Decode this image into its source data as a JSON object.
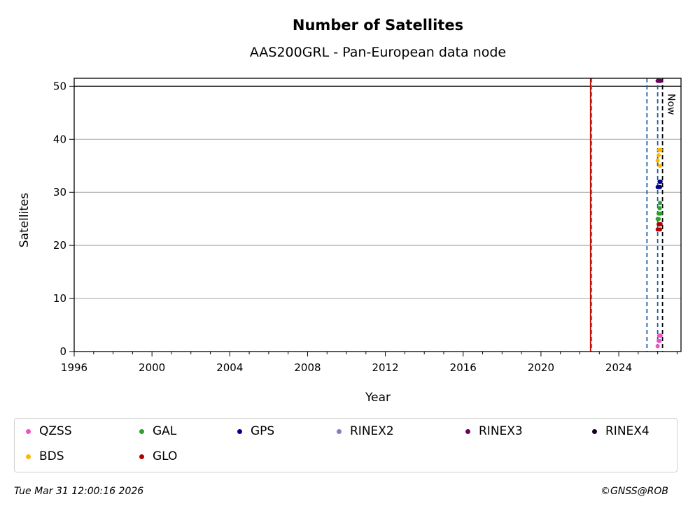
{
  "chart_data": {
    "type": "scatter",
    "title": "Number of Satellites",
    "subtitle": "AAS200GRL - Pan-European data node",
    "xlabel": "Year",
    "ylabel": "Satellites",
    "xlim": [
      1996,
      2027.2
    ],
    "ylim": [
      0,
      51.5
    ],
    "xticks": [
      1996,
      2000,
      2004,
      2008,
      2012,
      2016,
      2020,
      2024
    ],
    "yticks": [
      0,
      10,
      20,
      30,
      40,
      50
    ],
    "grid": "horizontal",
    "reference_line_y": 50,
    "now_label": "Now",
    "now_x": 2026.25,
    "vlines": [
      {
        "x": 2022.55,
        "color": "#cc0000",
        "style": "solid"
      },
      {
        "x": 2022.6,
        "color": "#2ca02c",
        "style": "dashed"
      },
      {
        "x": 2025.45,
        "color": "#1f5fa0",
        "style": "dashed"
      },
      {
        "x": 2026.0,
        "color": "#1f5fa0",
        "style": "dashed"
      },
      {
        "x": 2026.25,
        "color": "#000000",
        "style": "dashed"
      }
    ],
    "series": [
      {
        "name": "QZSS",
        "color": "#f050c8",
        "x": [
          2026.0,
          2026.05,
          2026.08,
          2026.12,
          2026.15,
          2026.1
        ],
        "y": [
          1,
          2,
          3,
          3,
          3,
          2
        ]
      },
      {
        "name": "GAL",
        "color": "#2ca02c",
        "x": [
          2026.0,
          2026.05,
          2026.1,
          2026.12,
          2026.15,
          2026.1,
          2026.05
        ],
        "y": [
          25,
          26,
          27,
          28,
          26,
          24,
          25
        ]
      },
      {
        "name": "GPS",
        "color": "#00008b",
        "x": [
          2026.0,
          2026.05,
          2026.1,
          2026.12,
          2026.15
        ],
        "y": [
          31,
          31,
          32,
          31,
          32
        ]
      },
      {
        "name": "RINEX2",
        "color": "#8080c0",
        "x": [],
        "y": []
      },
      {
        "name": "RINEX3",
        "color": "#6a0060",
        "x": [
          2026.0,
          2026.05,
          2026.1,
          2026.15
        ],
        "y": [
          51,
          51,
          51,
          51
        ]
      },
      {
        "name": "RINEX4",
        "color": "#1a0020",
        "x": [],
        "y": []
      },
      {
        "name": "BDS",
        "color": "#ffb800",
        "x": [
          2026.0,
          2026.05,
          2026.08,
          2026.12,
          2026.15
        ],
        "y": [
          36,
          37,
          38,
          35,
          38
        ]
      },
      {
        "name": "GLO",
        "color": "#b00000",
        "x": [
          2026.0,
          2026.05,
          2026.1,
          2026.12,
          2026.15
        ],
        "y": [
          23,
          24,
          24,
          23,
          24
        ]
      }
    ]
  },
  "footer": {
    "timestamp": "Tue Mar 31 12:00:16 2026",
    "credit": "©GNSS@ROB"
  }
}
